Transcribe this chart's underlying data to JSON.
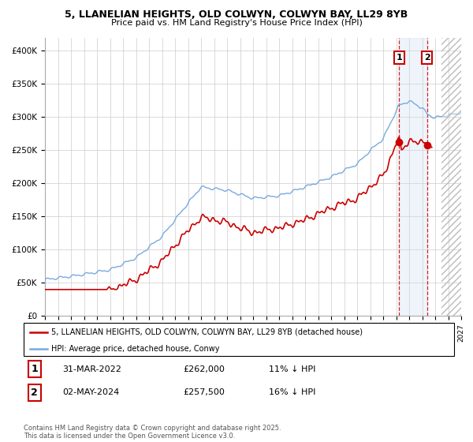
{
  "title1": "5, LLANELIAN HEIGHTS, OLD COLWYN, COLWYN BAY, LL29 8YB",
  "title2": "Price paid vs. HM Land Registry's House Price Index (HPI)",
  "ylim": [
    0,
    420000
  ],
  "yticks": [
    0,
    50000,
    100000,
    150000,
    200000,
    250000,
    300000,
    350000,
    400000
  ],
  "ytick_labels": [
    "£0",
    "£50K",
    "£100K",
    "£150K",
    "£200K",
    "£250K",
    "£300K",
    "£350K",
    "£400K"
  ],
  "legend_label_red": "5, LLANELIAN HEIGHTS, OLD COLWYN, COLWYN BAY, LL29 8YB (detached house)",
  "legend_label_blue": "HPI: Average price, detached house, Conwy",
  "annotation1_date": "31-MAR-2022",
  "annotation1_price": "£262,000",
  "annotation1_note": "11% ↓ HPI",
  "annotation2_date": "02-MAY-2024",
  "annotation2_price": "£257,500",
  "annotation2_note": "16% ↓ HPI",
  "footer": "Contains HM Land Registry data © Crown copyright and database right 2025.\nThis data is licensed under the Open Government Licence v3.0.",
  "red_color": "#cc0000",
  "blue_color": "#77aadd",
  "grid_color": "#cccccc",
  "shade_color": "#ccddf5",
  "marker1_x_year": 2022.24,
  "marker2_x_year": 2024.37,
  "marker1_y": 262000,
  "marker2_y": 257500,
  "future_start_year": 2025.5,
  "xlim_start": 1995,
  "xlim_end": 2027
}
